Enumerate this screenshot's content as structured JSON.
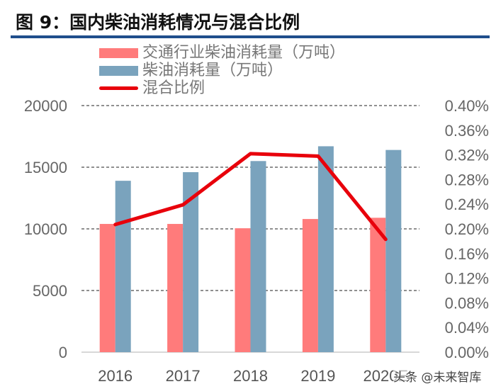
{
  "title": "图 9：国内柴油消耗情况与混合比例",
  "watermark": "头条 @未来智库",
  "colors": {
    "pink": "#ff7b7b",
    "blue": "#7aa3bd",
    "red": "#e8000b",
    "rule": "#1f4e8c"
  },
  "chart_data": {
    "type": "bar",
    "categories": [
      "2016",
      "2017",
      "2018",
      "2019",
      "2020E"
    ],
    "series": [
      {
        "name": "交通行业柴油消耗量（万吨）",
        "type": "bar",
        "axis": "left",
        "values": [
          10400,
          10400,
          10050,
          10800,
          10900
        ]
      },
      {
        "name": "柴油消耗量（万吨）",
        "type": "bar",
        "axis": "left",
        "values": [
          13900,
          14600,
          15500,
          16700,
          16400
        ]
      },
      {
        "name": "混合比例",
        "type": "line",
        "axis": "right",
        "values": [
          0.207,
          0.239,
          0.322,
          0.318,
          0.183
        ]
      }
    ],
    "ylim": [
      0,
      20000
    ],
    "yticks": [
      "0",
      "5000",
      "10000",
      "15000",
      "20000"
    ],
    "y2lim": [
      0,
      0.4
    ],
    "y2ticks": [
      "0.00%",
      "0.04%",
      "0.08%",
      "0.12%",
      "0.16%",
      "0.20%",
      "0.24%",
      "0.28%",
      "0.32%",
      "0.36%",
      "0.40%"
    ],
    "grid": true,
    "legend": "top-left"
  }
}
